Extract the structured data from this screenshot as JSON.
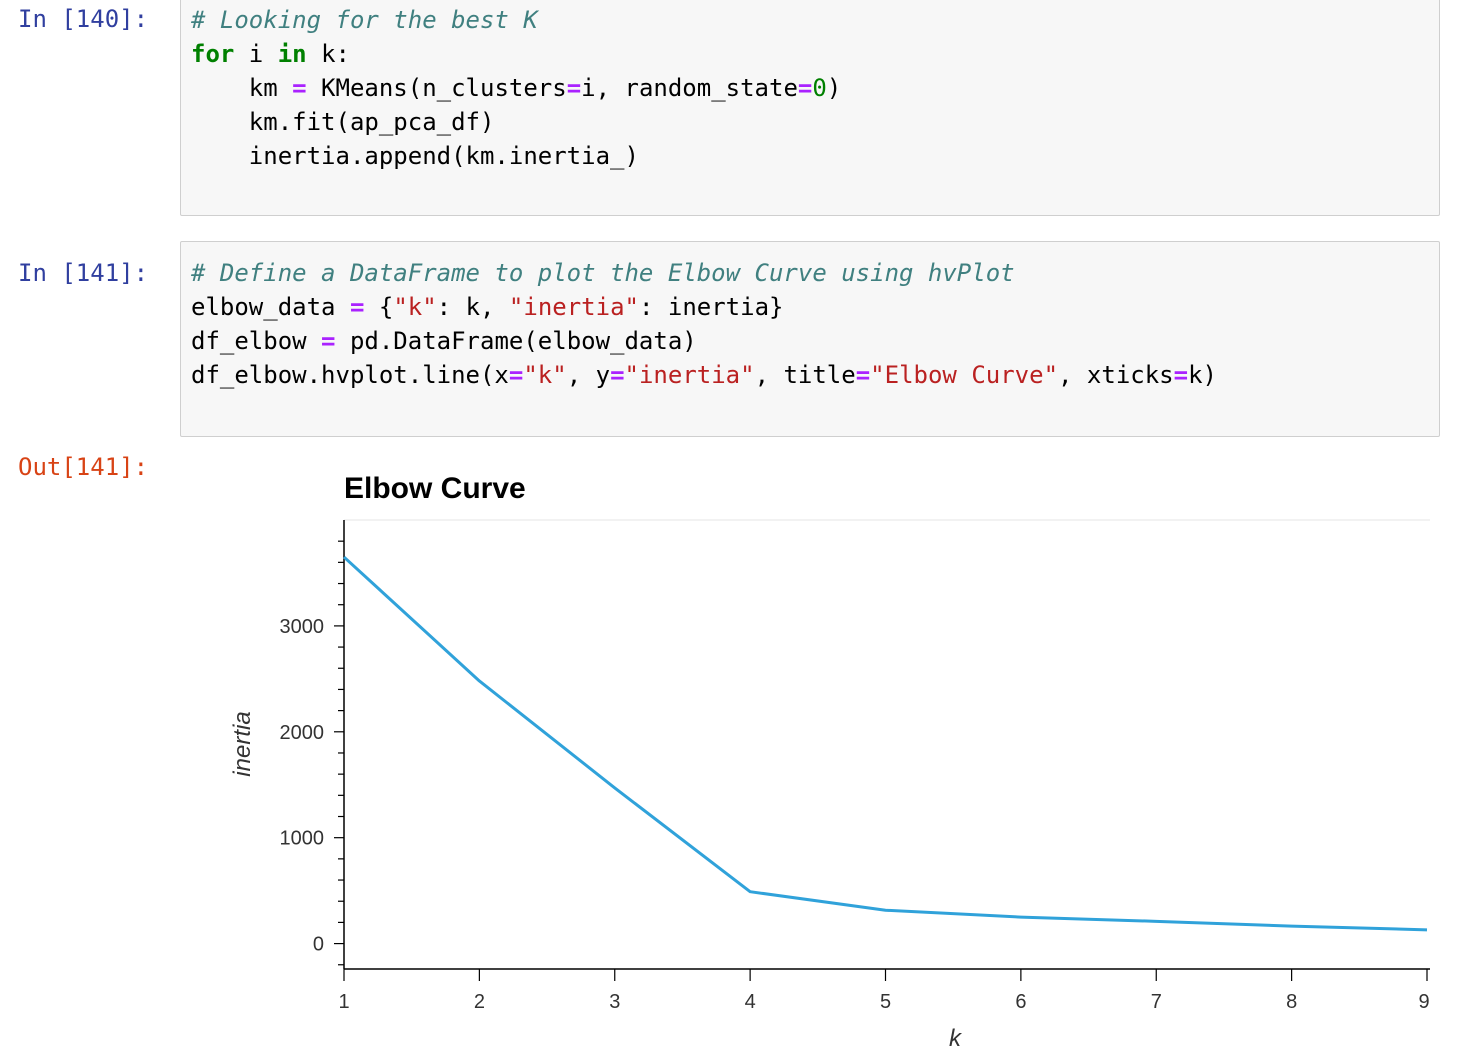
{
  "cells": [
    {
      "prompt": "In [140]:",
      "code": [
        [
          {
            "t": "# Looking for the best K",
            "c": "cm"
          }
        ],
        [
          {
            "t": "for",
            "c": "kw"
          },
          {
            "t": " i "
          },
          {
            "t": "in",
            "c": "kw"
          },
          {
            "t": " k:"
          }
        ],
        [
          {
            "t": "    km "
          },
          {
            "t": "=",
            "c": "op"
          },
          {
            "t": " KMeans(n_clusters"
          },
          {
            "t": "=",
            "c": "op"
          },
          {
            "t": "i, random_state"
          },
          {
            "t": "=",
            "c": "op"
          },
          {
            "t": "0",
            "c": "nu"
          },
          {
            "t": ")"
          }
        ],
        [
          {
            "t": "    km.fit(ap_pca_df)"
          }
        ],
        [
          {
            "t": "    inertia.append(km.inertia_)"
          }
        ]
      ]
    },
    {
      "prompt": "In [141]:",
      "code": [
        [
          {
            "t": "# Define a DataFrame to plot the Elbow Curve using hvPlot",
            "c": "cm"
          }
        ],
        [
          {
            "t": "elbow_data "
          },
          {
            "t": "=",
            "c": "op"
          },
          {
            "t": " {"
          },
          {
            "t": "\"k\"",
            "c": "st"
          },
          {
            "t": ": k, "
          },
          {
            "t": "\"inertia\"",
            "c": "st"
          },
          {
            "t": ": inertia}"
          }
        ],
        [
          {
            "t": "df_elbow "
          },
          {
            "t": "=",
            "c": "op"
          },
          {
            "t": " pd.DataFrame(elbow_data)"
          }
        ],
        [
          {
            "t": "df_elbow.hvplot.line(x"
          },
          {
            "t": "=",
            "c": "op"
          },
          {
            "t": "\"k\"",
            "c": "st"
          },
          {
            "t": ", y"
          },
          {
            "t": "=",
            "c": "op"
          },
          {
            "t": "\"inertia\"",
            "c": "st"
          },
          {
            "t": ", title"
          },
          {
            "t": "=",
            "c": "op"
          },
          {
            "t": "\"Elbow Curve\"",
            "c": "st"
          },
          {
            "t": ", xticks"
          },
          {
            "t": "=",
            "c": "op"
          },
          {
            "t": "k)"
          }
        ]
      ]
    }
  ],
  "output_prompt": "Out[141]:",
  "chart_data": {
    "type": "line",
    "title": "Elbow Curve",
    "xlabel": "k",
    "ylabel": "inertia",
    "x": [
      1,
      2,
      3,
      4,
      5,
      6,
      7,
      8,
      9
    ],
    "y": [
      3650,
      2480,
      1470,
      490,
      315,
      250,
      210,
      165,
      130
    ],
    "x_ticks": [
      "1",
      "2",
      "3",
      "4",
      "5",
      "6",
      "7",
      "8",
      "9"
    ],
    "y_ticks": [
      "0",
      "1000",
      "2000",
      "3000"
    ],
    "xlim": [
      1,
      9
    ],
    "ylim": [
      -240,
      4000
    ],
    "line_color": "#30a2da",
    "grid": false
  }
}
